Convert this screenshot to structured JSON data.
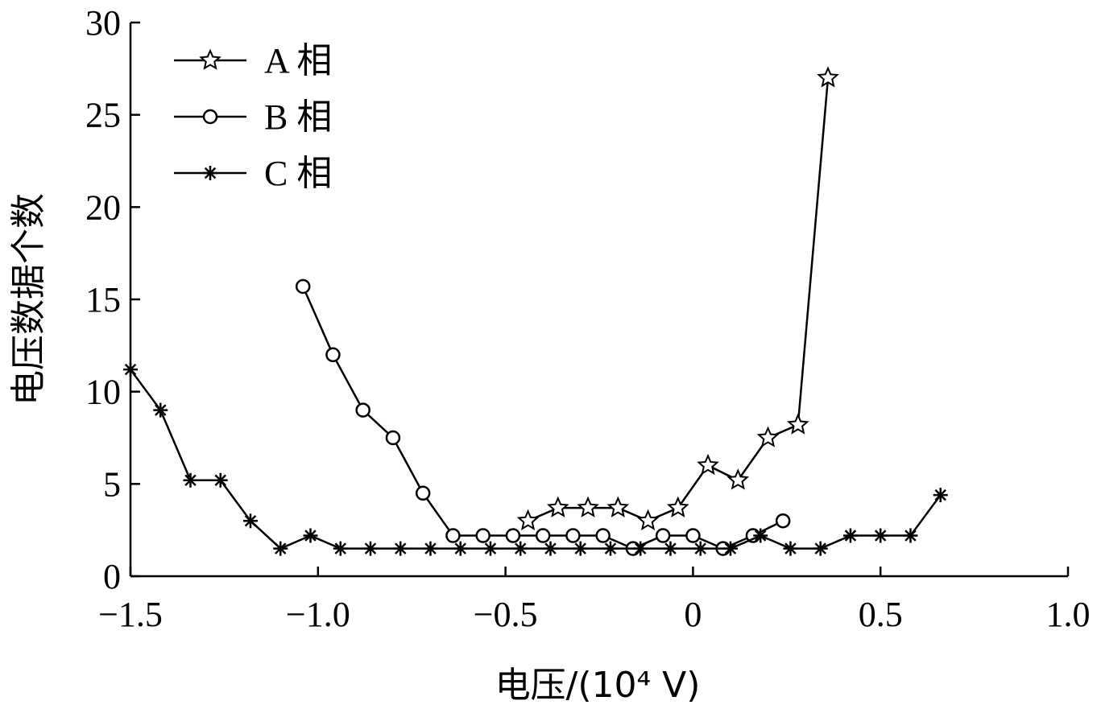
{
  "chart_data": {
    "type": "line",
    "xlabel": "电压/(10⁴ V)",
    "ylabel": "电压数据个数",
    "xlim": [
      -1.5,
      1.0
    ],
    "ylim": [
      0,
      30
    ],
    "xticks": [
      -1.5,
      -1.0,
      -0.5,
      0,
      0.5,
      1.0
    ],
    "xtick_labels": [
      "−1.5",
      "−1.0",
      "−0.5",
      "0",
      "0.5",
      "1.0"
    ],
    "yticks": [
      0,
      5,
      10,
      15,
      20,
      25,
      30
    ],
    "ytick_labels": [
      "0",
      "5",
      "10",
      "15",
      "20",
      "25",
      "30"
    ],
    "grid": false,
    "legend_position": "top-left",
    "series": [
      {
        "name": "A 相",
        "marker": "star",
        "x": [
          -0.44,
          -0.36,
          -0.28,
          -0.2,
          -0.12,
          -0.04,
          0.04,
          0.12,
          0.2,
          0.28,
          0.36
        ],
        "y": [
          3,
          3.7,
          3.7,
          3.7,
          3,
          3.7,
          6,
          5.2,
          7.5,
          8.2,
          27
        ]
      },
      {
        "name": "B 相",
        "marker": "circle",
        "x": [
          -1.04,
          -0.96,
          -0.88,
          -0.8,
          -0.72,
          -0.64,
          -0.56,
          -0.48,
          -0.4,
          -0.32,
          -0.24,
          -0.16,
          -0.08,
          0,
          0.08,
          0.16,
          0.24
        ],
        "y": [
          15.7,
          12,
          9,
          7.5,
          4.5,
          2.2,
          2.2,
          2.2,
          2.2,
          2.2,
          2.2,
          1.5,
          2.2,
          2.2,
          1.5,
          2.2,
          3
        ]
      },
      {
        "name": "C 相",
        "marker": "asterisk",
        "x": [
          -1.5,
          -1.42,
          -1.34,
          -1.26,
          -1.18,
          -1.1,
          -1.02,
          -0.94,
          -0.86,
          -0.78,
          -0.7,
          -0.62,
          -0.54,
          -0.46,
          -0.38,
          -0.3,
          -0.22,
          -0.14,
          -0.06,
          0.02,
          0.1,
          0.18,
          0.26,
          0.34,
          0.42,
          0.5,
          0.58,
          0.66
        ],
        "y": [
          11.2,
          9,
          5.2,
          5.2,
          3,
          1.5,
          2.2,
          1.5,
          1.5,
          1.5,
          1.5,
          1.5,
          1.5,
          1.5,
          1.5,
          1.5,
          1.5,
          1.5,
          1.5,
          1.5,
          1.5,
          2.2,
          1.5,
          1.5,
          2.2,
          2.2,
          2.2,
          4.4
        ]
      }
    ]
  }
}
